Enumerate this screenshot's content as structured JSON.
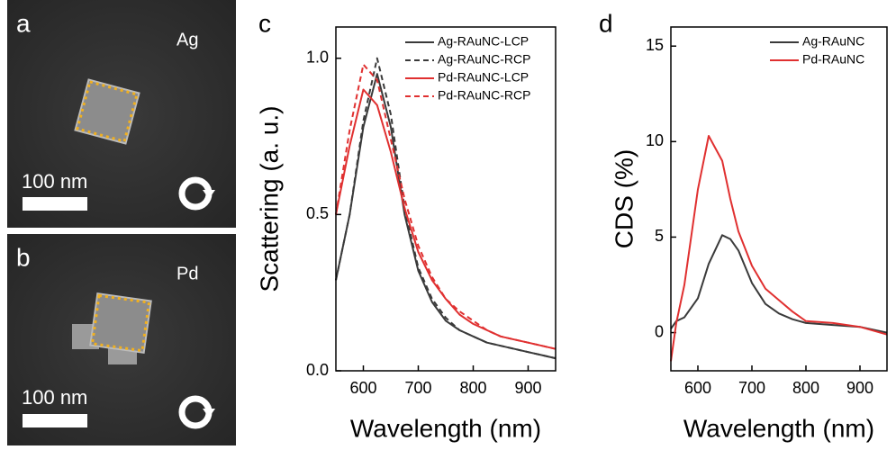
{
  "image_panels": [
    {
      "label": "a",
      "element": "Ag",
      "scale": "100 nm"
    },
    {
      "label": "b",
      "element": "Pd",
      "scale": "100 nm"
    }
  ],
  "chart_data": [
    {
      "type": "line",
      "panel_label": "c",
      "xlabel": "Wavelength (nm)",
      "ylabel": "Scattering (a. u.)",
      "x": [
        550,
        575,
        600,
        625,
        650,
        675,
        700,
        725,
        750,
        775,
        800,
        825,
        850,
        875,
        900,
        925,
        950
      ],
      "series": [
        {
          "name": "Ag-RAuNC-LCP",
          "color": "#3a3a3a",
          "dashed": false,
          "values": [
            0.29,
            0.5,
            0.78,
            0.95,
            0.78,
            0.5,
            0.32,
            0.22,
            0.16,
            0.13,
            0.11,
            0.09,
            0.08,
            0.07,
            0.06,
            0.05,
            0.04
          ]
        },
        {
          "name": "Ag-RAuNC-RCP",
          "color": "#3a3a3a",
          "dashed": true,
          "values": [
            0.29,
            0.5,
            0.8,
            1.0,
            0.82,
            0.52,
            0.33,
            0.23,
            0.17,
            0.13,
            0.11,
            0.09,
            0.08,
            0.07,
            0.06,
            0.05,
            0.04
          ]
        },
        {
          "name": "Pd-RAuNC-LCP",
          "color": "#e03030",
          "dashed": false,
          "values": [
            0.5,
            0.72,
            0.9,
            0.85,
            0.7,
            0.52,
            0.38,
            0.29,
            0.23,
            0.18,
            0.15,
            0.13,
            0.11,
            0.1,
            0.09,
            0.08,
            0.07
          ]
        },
        {
          "name": "Pd-RAuNC-RCP",
          "color": "#e03030",
          "dashed": true,
          "values": [
            0.5,
            0.77,
            0.98,
            0.93,
            0.74,
            0.55,
            0.4,
            0.3,
            0.23,
            0.19,
            0.16,
            0.13,
            0.11,
            0.1,
            0.09,
            0.08,
            0.07
          ]
        }
      ],
      "xlim": [
        550,
        950
      ],
      "xticks": [
        600,
        700,
        800,
        900
      ],
      "ylim": [
        0,
        1.1
      ],
      "yticks": [
        {
          "value": 0,
          "label": "0.0"
        },
        0.5,
        {
          "value": 1,
          "label": "1.0"
        }
      ],
      "legend": "top-right"
    },
    {
      "type": "line",
      "panel_label": "d",
      "xlabel": "Wavelength (nm)",
      "ylabel": "CDS (%)",
      "x": [
        550,
        560,
        575,
        600,
        620,
        645,
        660,
        675,
        700,
        725,
        750,
        775,
        800,
        850,
        900,
        950
      ],
      "series": [
        {
          "name": "Ag-RAuNC",
          "color": "#3a3a3a",
          "dashed": false,
          "values": [
            0.2,
            0.6,
            0.8,
            1.8,
            3.6,
            5.1,
            4.9,
            4.3,
            2.6,
            1.5,
            1.0,
            0.7,
            0.5,
            0.4,
            0.3,
            0
          ]
        },
        {
          "name": "Pd-RAuNC",
          "color": "#e03030",
          "dashed": false,
          "values": [
            -1.5,
            0.5,
            2.5,
            7.5,
            10.3,
            9.0,
            7,
            5.3,
            3.5,
            2.3,
            1.7,
            1.1,
            0.6,
            0.5,
            0.3,
            -0.1
          ]
        }
      ],
      "xlim": [
        550,
        950
      ],
      "xticks": [
        600,
        700,
        800,
        900
      ],
      "ylim": [
        -2,
        16
      ],
      "yticks": [
        0,
        5,
        10,
        15
      ],
      "legend": "top-right"
    }
  ]
}
